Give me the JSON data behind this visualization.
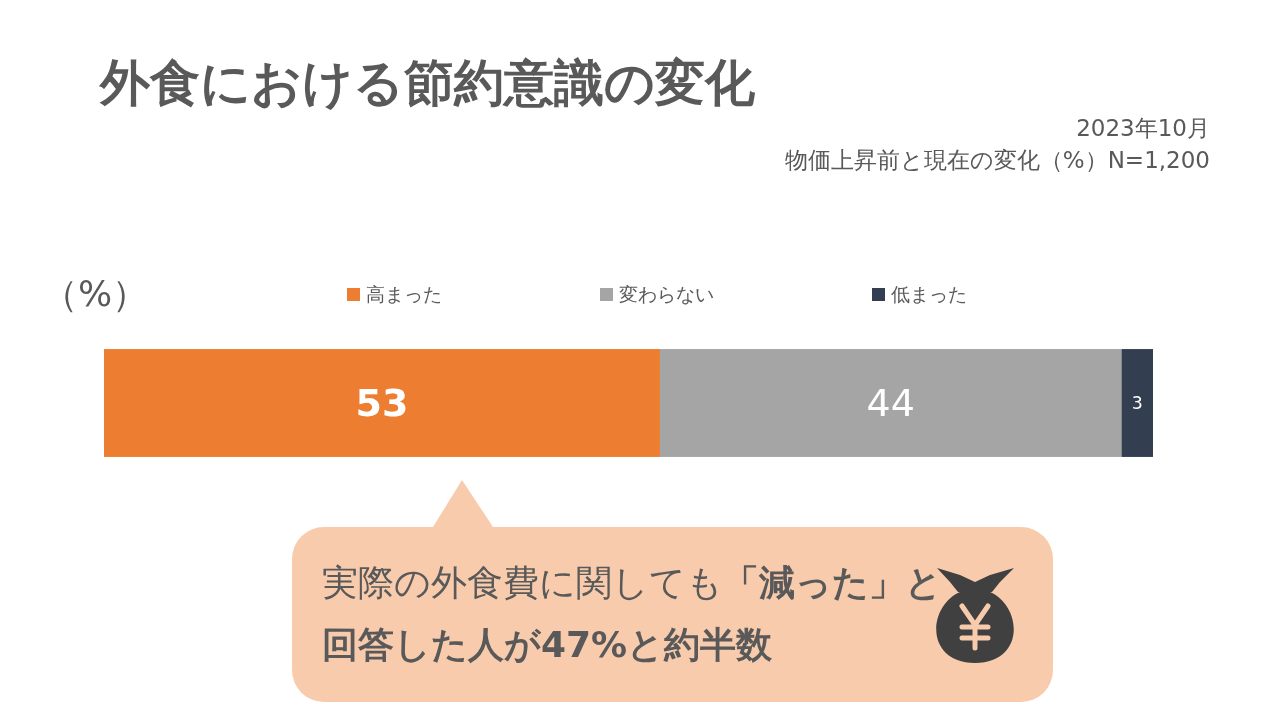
{
  "chart_data": {
    "type": "bar",
    "orientation": "horizontal",
    "stacked": true,
    "title": "外食における節約意識の変化",
    "xlabel": "（%）",
    "categories": [
      null
    ],
    "series": [
      {
        "name": "高まった",
        "color": "#ed7d31",
        "values": [
          53
        ]
      },
      {
        "name": "変わらない",
        "color": "#a5a5a5",
        "values": [
          44
        ]
      },
      {
        "name": "低まった",
        "color": "#333f50",
        "values": [
          3
        ]
      }
    ],
    "xlim": [
      0,
      100
    ],
    "data_labels": true,
    "legend": "top",
    "annotations": [
      "2023年10月",
      "物価上昇前と現在の変化（%）N=1,200",
      "実際の外食費に関しても**「減った」と回答した人が47%と約半数**"
    ]
  }
}
